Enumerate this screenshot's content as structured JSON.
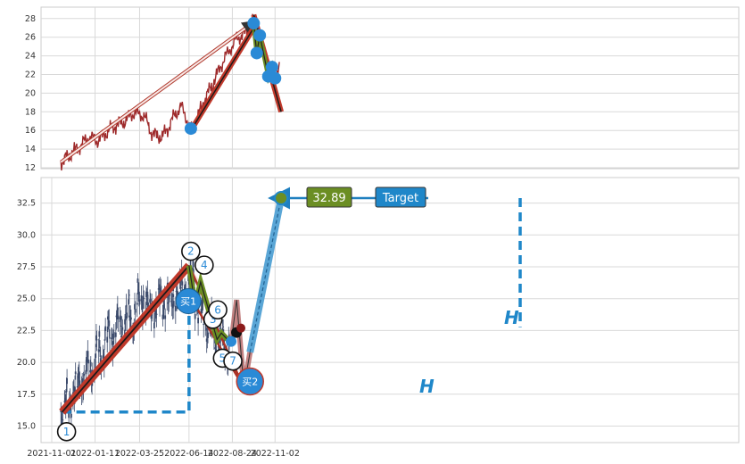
{
  "chart_data": [
    {
      "type": "line",
      "panel": "overview",
      "ylim": [
        11.5,
        28.8
      ],
      "yticks": [
        12,
        14,
        16,
        18,
        20,
        22,
        24,
        26,
        28
      ],
      "grid": true,
      "color": "#9e2a2b",
      "price_line": {
        "x": [
          "2021-11-16",
          "2021-12-01",
          "2021-12-15",
          "2022-01-01",
          "2022-01-15",
          "2022-02-01",
          "2022-02-15",
          "2022-03-01",
          "2022-03-15",
          "2022-04-01",
          "2022-04-15",
          "2022-05-01",
          "2022-05-10",
          "2022-05-20",
          "2022-06-01",
          "2022-06-10",
          "2022-06-15",
          "2022-06-22",
          "2022-07-01",
          "2022-07-10",
          "2022-07-20",
          "2022-08-01",
          "2022-08-10",
          "2022-08-20",
          "2022-09-01",
          "2022-09-10",
          "2022-09-20",
          "2022-09-28",
          "2022-10-05",
          "2022-10-15",
          "2022-10-25",
          "2022-11-02",
          "2022-11-10"
        ],
        "y": [
          12.6,
          13.4,
          14.2,
          15.3,
          14.9,
          15.9,
          16.6,
          17.0,
          17.9,
          17.6,
          15.6,
          15.3,
          16.2,
          17.5,
          18.6,
          17.3,
          16.3,
          16.2,
          17.9,
          19.4,
          20.6,
          22.3,
          23.6,
          24.7,
          25.9,
          26.3,
          26.8,
          27.8,
          25.5,
          23.6,
          22.6,
          21.8,
          22.8
        ]
      },
      "trend_lines": [
        {
          "from": [
            "2021-11-16",
            12.6
          ],
          "to": [
            "2022-09-28",
            27.6
          ],
          "style": "thin-arrow"
        },
        {
          "from": [
            "2022-06-17",
            16.0
          ],
          "to": [
            "2022-09-28",
            27.0
          ],
          "style": "thick"
        },
        {
          "from": [
            "2022-09-28",
            28.4
          ],
          "to": [
            "2022-11-12",
            18.0
          ],
          "style": "thick"
        }
      ],
      "markers": [
        {
          "x": "2022-06-17",
          "y": 16.2
        },
        {
          "x": "2022-09-28",
          "y": 27.5
        },
        {
          "x": "2022-10-03",
          "y": 24.3
        },
        {
          "x": "2022-10-08",
          "y": 26.2
        },
        {
          "x": "2022-10-22",
          "y": 21.8
        },
        {
          "x": "2022-10-28",
          "y": 22.8
        },
        {
          "x": "2022-11-02",
          "y": 21.6
        }
      ]
    },
    {
      "type": "candlestick",
      "panel": "detail",
      "ylim": [
        13.6,
        34.3
      ],
      "yticks": [
        15.0,
        17.5,
        20.0,
        22.5,
        25.0,
        27.5,
        30.0,
        32.5
      ],
      "ytick_labels": [
        "15.0",
        "17.5",
        "20.0",
        "22.5",
        "25.0",
        "27.5",
        "30.0",
        "32.5"
      ],
      "xlim": [
        "2021-11-01",
        "2022-11-25"
      ],
      "xtick_labels": [
        "2021-11-01",
        "2022-01-11",
        "2022-03-25",
        "2022-06-14",
        "2022-08-24",
        "2022-11-02"
      ],
      "grid": true,
      "price_path": {
        "x": [
          "2021-11-16",
          "2021-12-01",
          "2021-12-15",
          "2022-01-01",
          "2022-01-15",
          "2022-02-01",
          "2022-02-15",
          "2022-03-01",
          "2022-03-15",
          "2022-04-01",
          "2022-04-10",
          "2022-04-20",
          "2022-05-01",
          "2022-05-15",
          "2022-06-01",
          "2022-06-15",
          "2022-06-20",
          "2022-06-25",
          "2022-07-01",
          "2022-07-10",
          "2022-07-20",
          "2022-08-01",
          "2022-08-10",
          "2022-08-20"
        ],
        "y": [
          16.2,
          17.0,
          18.5,
          19.5,
          20.5,
          22.0,
          22.8,
          23.4,
          23.8,
          25.5,
          24.0,
          24.5,
          25.0,
          24.8,
          25.8,
          26.5,
          27.6,
          25.0,
          24.3,
          23.5,
          22.5,
          21.8,
          21.5,
          21.3
        ]
      },
      "waves": [
        {
          "label": "1",
          "x": "2021-11-18",
          "y": 16.1
        },
        {
          "label": "2",
          "x": "2022-06-14",
          "y": 27.6
        },
        {
          "label": "3",
          "x": "2022-06-24",
          "y": 24.5
        },
        {
          "label": "4",
          "x": "2022-07-03",
          "y": 26.3
        },
        {
          "label": "5",
          "x": "2022-07-30",
          "y": 21.8
        },
        {
          "label": "6",
          "x": "2022-08-06",
          "y": 22.3
        },
        {
          "label": "7",
          "x": "2022-08-22",
          "y": 21.5
        }
      ],
      "projection": [
        {
          "x": "2022-08-22",
          "y": 21.5
        },
        {
          "x": "2022-08-31",
          "y": 24.9
        },
        {
          "x": "2022-09-12",
          "y": 18.0
        },
        {
          "x": "2022-09-22",
          "y": 20.8
        },
        {
          "x": "2022-11-12",
          "y": 32.89
        }
      ],
      "target_value": "32.89",
      "target_label": "Target",
      "h_label": "H",
      "buy1_label": "买1",
      "buy1": {
        "x": "2022-06-13",
        "y": 24.8
      },
      "buy2_label": "买2",
      "buy2": {
        "x": "2022-09-22",
        "y": 18.5
      },
      "accent": "#2a8ad6",
      "trend_color": "#c0392b",
      "wave_color": "#6b8e23"
    }
  ]
}
